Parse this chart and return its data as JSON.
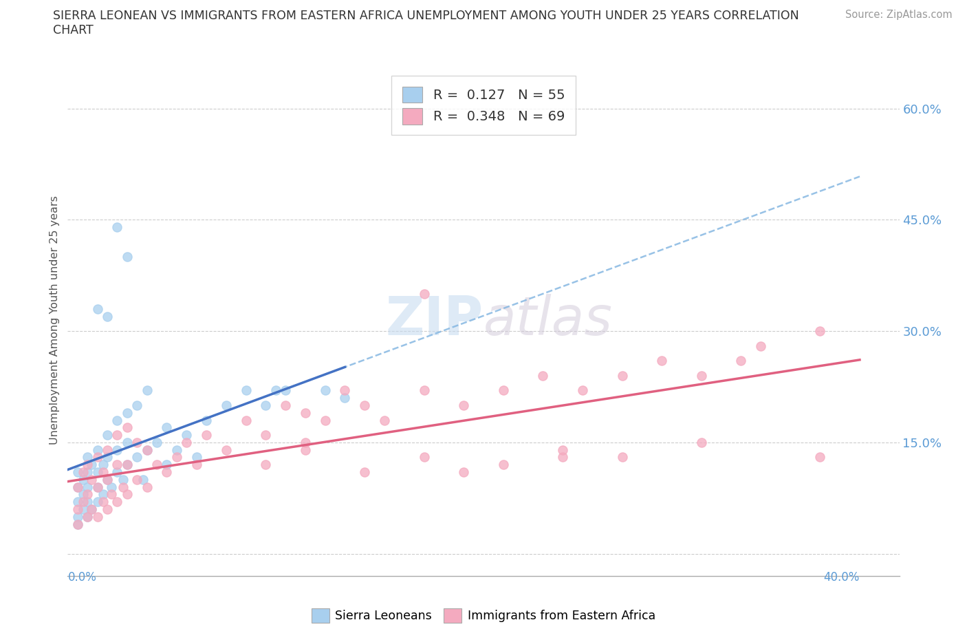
{
  "title_line1": "SIERRA LEONEAN VS IMMIGRANTS FROM EASTERN AFRICA UNEMPLOYMENT AMONG YOUTH UNDER 25 YEARS CORRELATION",
  "title_line2": "CHART",
  "source": "Source: ZipAtlas.com",
  "ylabel": "Unemployment Among Youth under 25 years",
  "watermark_zip": "ZIP",
  "watermark_atlas": "atlas",
  "legend_r1": "R =  0.127   N = 55",
  "legend_r2": "R =  0.348   N = 69",
  "color_blue": "#A8CFEE",
  "color_pink": "#F4AABF",
  "line_blue_solid": "#4472C4",
  "line_blue_dash": "#7FB3E0",
  "line_pink": "#E06080",
  "ytick_color": "#5B9BD5",
  "xlim": [
    0.0,
    0.42
  ],
  "ylim": [
    -0.03,
    0.66
  ],
  "yticks": [
    0.0,
    0.15,
    0.3,
    0.45,
    0.6
  ],
  "ytick_labels": [
    "",
    "15.0%",
    "30.0%",
    "45.0%",
    "60.0%"
  ],
  "sl_x": [
    0.005,
    0.005,
    0.005,
    0.005,
    0.005,
    0.008,
    0.008,
    0.008,
    0.01,
    0.01,
    0.01,
    0.01,
    0.01,
    0.012,
    0.012,
    0.015,
    0.015,
    0.015,
    0.015,
    0.018,
    0.018,
    0.02,
    0.02,
    0.02,
    0.022,
    0.025,
    0.025,
    0.025,
    0.028,
    0.03,
    0.03,
    0.03,
    0.035,
    0.035,
    0.038,
    0.04,
    0.04,
    0.045,
    0.05,
    0.05,
    0.055,
    0.06,
    0.065,
    0.07,
    0.08,
    0.09,
    0.1,
    0.105,
    0.11,
    0.13,
    0.14,
    0.03,
    0.025,
    0.02,
    0.015
  ],
  "sl_y": [
    0.05,
    0.07,
    0.09,
    0.11,
    0.04,
    0.06,
    0.08,
    0.1,
    0.05,
    0.07,
    0.09,
    0.11,
    0.13,
    0.06,
    0.12,
    0.07,
    0.09,
    0.11,
    0.14,
    0.08,
    0.12,
    0.1,
    0.13,
    0.16,
    0.09,
    0.11,
    0.14,
    0.18,
    0.1,
    0.12,
    0.15,
    0.19,
    0.13,
    0.2,
    0.1,
    0.14,
    0.22,
    0.15,
    0.12,
    0.17,
    0.14,
    0.16,
    0.13,
    0.18,
    0.2,
    0.22,
    0.2,
    0.22,
    0.22,
    0.22,
    0.21,
    0.4,
    0.44,
    0.32,
    0.33
  ],
  "ea_x": [
    0.005,
    0.005,
    0.005,
    0.008,
    0.008,
    0.01,
    0.01,
    0.01,
    0.012,
    0.012,
    0.015,
    0.015,
    0.015,
    0.018,
    0.018,
    0.02,
    0.02,
    0.02,
    0.022,
    0.025,
    0.025,
    0.025,
    0.028,
    0.03,
    0.03,
    0.03,
    0.035,
    0.035,
    0.04,
    0.04,
    0.045,
    0.05,
    0.055,
    0.06,
    0.065,
    0.07,
    0.08,
    0.09,
    0.1,
    0.11,
    0.12,
    0.12,
    0.13,
    0.14,
    0.15,
    0.16,
    0.18,
    0.2,
    0.22,
    0.24,
    0.26,
    0.28,
    0.3,
    0.32,
    0.34,
    0.35,
    0.38,
    0.18,
    0.2,
    0.25,
    0.1,
    0.12,
    0.15,
    0.18,
    0.22,
    0.25,
    0.28,
    0.32,
    0.38
  ],
  "ea_y": [
    0.06,
    0.09,
    0.04,
    0.07,
    0.11,
    0.05,
    0.08,
    0.12,
    0.06,
    0.1,
    0.05,
    0.09,
    0.13,
    0.07,
    0.11,
    0.06,
    0.1,
    0.14,
    0.08,
    0.07,
    0.12,
    0.16,
    0.09,
    0.08,
    0.12,
    0.17,
    0.1,
    0.15,
    0.09,
    0.14,
    0.12,
    0.11,
    0.13,
    0.15,
    0.12,
    0.16,
    0.14,
    0.18,
    0.16,
    0.2,
    0.15,
    0.19,
    0.18,
    0.22,
    0.2,
    0.18,
    0.22,
    0.2,
    0.22,
    0.24,
    0.22,
    0.24,
    0.26,
    0.24,
    0.26,
    0.28,
    0.3,
    0.35,
    0.11,
    0.13,
    0.12,
    0.14,
    0.11,
    0.13,
    0.12,
    0.14,
    0.13,
    0.15,
    0.13
  ]
}
